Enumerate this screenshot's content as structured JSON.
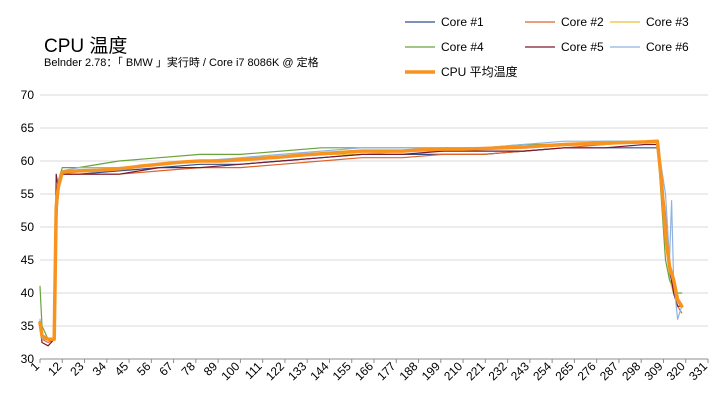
{
  "chart_data": {
    "type": "line",
    "title": "CPU 温度",
    "subtitle": "Belnder 2.78：「 BMW 」実行時 / Core i7 8086K @ 定格",
    "xlabel": "",
    "ylabel": "",
    "ylim": [
      30,
      70
    ],
    "yticks": [
      30,
      35,
      40,
      45,
      50,
      55,
      60,
      65,
      70
    ],
    "xlim": [
      1,
      331
    ],
    "xticks": [
      1,
      12,
      23,
      34,
      45,
      56,
      67,
      78,
      89,
      100,
      111,
      122,
      133,
      144,
      155,
      166,
      177,
      188,
      199,
      210,
      221,
      232,
      243,
      254,
      265,
      276,
      287,
      298,
      309,
      320,
      331
    ],
    "grid": "horizontal",
    "legend_position": "top-right",
    "series": [
      {
        "name": "Core #1",
        "color": "#2f4f8f",
        "points": [
          [
            1,
            35
          ],
          [
            2,
            33
          ],
          [
            5,
            33
          ],
          [
            8,
            33
          ],
          [
            9,
            50
          ],
          [
            10,
            55
          ],
          [
            11,
            57
          ],
          [
            12,
            58
          ],
          [
            20,
            58
          ],
          [
            40,
            58.5
          ],
          [
            60,
            59
          ],
          [
            80,
            59.5
          ],
          [
            100,
            59.5
          ],
          [
            120,
            60
          ],
          [
            140,
            60.5
          ],
          [
            160,
            61
          ],
          [
            180,
            61
          ],
          [
            200,
            61
          ],
          [
            220,
            61
          ],
          [
            240,
            61.5
          ],
          [
            260,
            62
          ],
          [
            280,
            62
          ],
          [
            300,
            62
          ],
          [
            306,
            62
          ],
          [
            310,
            50
          ],
          [
            312,
            43
          ],
          [
            314,
            41
          ],
          [
            316,
            39
          ],
          [
            318,
            38
          ]
        ]
      },
      {
        "name": "Core #2",
        "color": "#e0622a",
        "points": [
          [
            1,
            35
          ],
          [
            2,
            33
          ],
          [
            5,
            32.5
          ],
          [
            8,
            33
          ],
          [
            9,
            55
          ],
          [
            10,
            57
          ],
          [
            12,
            58
          ],
          [
            20,
            58
          ],
          [
            40,
            58
          ],
          [
            60,
            58.5
          ],
          [
            80,
            59
          ],
          [
            100,
            59
          ],
          [
            120,
            59.5
          ],
          [
            140,
            60
          ],
          [
            160,
            60.5
          ],
          [
            180,
            60.5
          ],
          [
            200,
            61
          ],
          [
            220,
            61
          ],
          [
            240,
            61.5
          ],
          [
            260,
            62
          ],
          [
            280,
            62.5
          ],
          [
            300,
            63
          ],
          [
            306,
            63
          ],
          [
            310,
            52
          ],
          [
            312,
            44
          ],
          [
            314,
            40
          ],
          [
            316,
            38
          ],
          [
            318,
            37
          ]
        ]
      },
      {
        "name": "Core #3",
        "color": "#e8c23a",
        "points": [
          [
            1,
            35
          ],
          [
            2,
            33
          ],
          [
            5,
            33
          ],
          [
            8,
            33
          ],
          [
            9,
            52
          ],
          [
            10,
            56
          ],
          [
            12,
            58.5
          ],
          [
            20,
            59
          ],
          [
            40,
            59
          ],
          [
            60,
            59.5
          ],
          [
            80,
            60
          ],
          [
            100,
            60
          ],
          [
            120,
            60.5
          ],
          [
            140,
            61
          ],
          [
            160,
            61
          ],
          [
            180,
            61.5
          ],
          [
            200,
            61.5
          ],
          [
            220,
            62
          ],
          [
            240,
            62
          ],
          [
            260,
            62.5
          ],
          [
            280,
            62.5
          ],
          [
            300,
            63
          ],
          [
            306,
            63
          ],
          [
            310,
            50
          ],
          [
            312,
            42
          ],
          [
            314,
            40
          ],
          [
            316,
            38
          ],
          [
            318,
            38
          ]
        ]
      },
      {
        "name": "Core #4",
        "color": "#6aa33a",
        "points": [
          [
            1,
            41
          ],
          [
            2,
            35
          ],
          [
            5,
            33
          ],
          [
            8,
            33
          ],
          [
            9,
            53
          ],
          [
            10,
            57
          ],
          [
            12,
            59
          ],
          [
            20,
            59
          ],
          [
            40,
            60
          ],
          [
            60,
            60.5
          ],
          [
            80,
            61
          ],
          [
            100,
            61
          ],
          [
            120,
            61.5
          ],
          [
            140,
            62
          ],
          [
            160,
            62
          ],
          [
            180,
            62
          ],
          [
            200,
            62
          ],
          [
            220,
            62
          ],
          [
            240,
            62.5
          ],
          [
            260,
            62.5
          ],
          [
            280,
            63
          ],
          [
            300,
            63
          ],
          [
            306,
            63
          ],
          [
            310,
            45
          ],
          [
            312,
            42
          ],
          [
            314,
            41
          ],
          [
            316,
            40
          ],
          [
            318,
            40
          ]
        ]
      },
      {
        "name": "Core #5",
        "color": "#7a1a2e",
        "points": [
          [
            1,
            35
          ],
          [
            2,
            32.5
          ],
          [
            5,
            32
          ],
          [
            8,
            33
          ],
          [
            9,
            58
          ],
          [
            10,
            56
          ],
          [
            12,
            58
          ],
          [
            20,
            58
          ],
          [
            40,
            58
          ],
          [
            60,
            59
          ],
          [
            80,
            59
          ],
          [
            100,
            59.5
          ],
          [
            120,
            60
          ],
          [
            140,
            60.5
          ],
          [
            160,
            61
          ],
          [
            180,
            61
          ],
          [
            200,
            61.5
          ],
          [
            220,
            61.5
          ],
          [
            240,
            61.5
          ],
          [
            260,
            62
          ],
          [
            280,
            62
          ],
          [
            300,
            62.5
          ],
          [
            306,
            62.5
          ],
          [
            310,
            48
          ],
          [
            312,
            44
          ],
          [
            314,
            40
          ],
          [
            316,
            38
          ],
          [
            318,
            38
          ]
        ]
      },
      {
        "name": "Core #6",
        "color": "#8fb3e0",
        "points": [
          [
            1,
            36
          ],
          [
            2,
            33
          ],
          [
            5,
            33
          ],
          [
            8,
            33
          ],
          [
            9,
            54
          ],
          [
            10,
            57
          ],
          [
            12,
            58.5
          ],
          [
            20,
            59
          ],
          [
            40,
            59
          ],
          [
            60,
            59.5
          ],
          [
            80,
            60
          ],
          [
            100,
            60.5
          ],
          [
            120,
            61
          ],
          [
            140,
            61.5
          ],
          [
            160,
            62
          ],
          [
            180,
            62
          ],
          [
            200,
            62
          ],
          [
            220,
            62
          ],
          [
            240,
            62.5
          ],
          [
            260,
            63
          ],
          [
            280,
            63
          ],
          [
            300,
            63
          ],
          [
            306,
            63
          ],
          [
            310,
            55
          ],
          [
            312,
            45
          ],
          [
            313,
            54
          ],
          [
            314,
            42
          ],
          [
            316,
            36
          ],
          [
            318,
            38
          ]
        ]
      },
      {
        "name": "CPU 平均温度",
        "color": "#f7931e",
        "thick": true,
        "points": [
          [
            1,
            35.5
          ],
          [
            2,
            33.5
          ],
          [
            5,
            33
          ],
          [
            8,
            33
          ],
          [
            9,
            53
          ],
          [
            10,
            56
          ],
          [
            12,
            58.3
          ],
          [
            20,
            58.5
          ],
          [
            30,
            58.6
          ],
          [
            40,
            58.8
          ],
          [
            50,
            59.2
          ],
          [
            60,
            59.5
          ],
          [
            70,
            59.8
          ],
          [
            80,
            60
          ],
          [
            90,
            60
          ],
          [
            100,
            60.2
          ],
          [
            110,
            60.4
          ],
          [
            120,
            60.6
          ],
          [
            130,
            60.9
          ],
          [
            140,
            61.1
          ],
          [
            150,
            61.3
          ],
          [
            160,
            61.5
          ],
          [
            170,
            61.5
          ],
          [
            180,
            61.5
          ],
          [
            190,
            61.7
          ],
          [
            200,
            61.8
          ],
          [
            210,
            61.8
          ],
          [
            220,
            61.9
          ],
          [
            230,
            62
          ],
          [
            240,
            62.1
          ],
          [
            250,
            62.3
          ],
          [
            260,
            62.5
          ],
          [
            270,
            62.6
          ],
          [
            280,
            62.7
          ],
          [
            290,
            62.8
          ],
          [
            300,
            62.9
          ],
          [
            306,
            63
          ],
          [
            308,
            57
          ],
          [
            310,
            49
          ],
          [
            312,
            44
          ],
          [
            314,
            42
          ],
          [
            316,
            39
          ],
          [
            318,
            38
          ]
        ]
      }
    ]
  }
}
